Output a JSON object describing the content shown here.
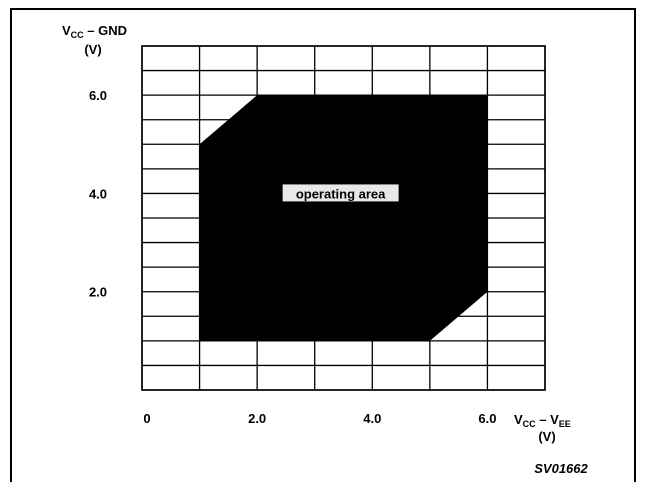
{
  "chart_data": {
    "type": "area",
    "ylabel_main": "V",
    "ylabel_sub1": "CC",
    "ylabel_mid": " – GND",
    "ylabel_unit": "(V)",
    "xlabel_main": "V",
    "xlabel_sub1": "CC",
    "xlabel_mid": " – V",
    "xlabel_sub2": "EE",
    "xlabel_unit": "(V)",
    "xlim": [
      0,
      7
    ],
    "ylim": [
      0,
      7
    ],
    "x_ticks": [
      {
        "value": 0,
        "label": "0"
      },
      {
        "value": 2,
        "label": "2.0"
      },
      {
        "value": 4,
        "label": "4.0"
      },
      {
        "value": 6,
        "label": "6.0"
      }
    ],
    "y_ticks": [
      {
        "value": 2,
        "label": "2.0"
      },
      {
        "value": 4,
        "label": "4.0"
      },
      {
        "value": 6,
        "label": "6.0"
      }
    ],
    "grid_step": 1,
    "grid": true,
    "region": {
      "name": "operating area",
      "color": "#000000",
      "points": [
        [
          1.0,
          1.0
        ],
        [
          1.0,
          5.0
        ],
        [
          2.0,
          6.0
        ],
        [
          6.0,
          6.0
        ],
        [
          6.0,
          2.0
        ],
        [
          5.0,
          1.0
        ]
      ]
    },
    "annotation": "operating area",
    "figure_code": "SV01662"
  }
}
